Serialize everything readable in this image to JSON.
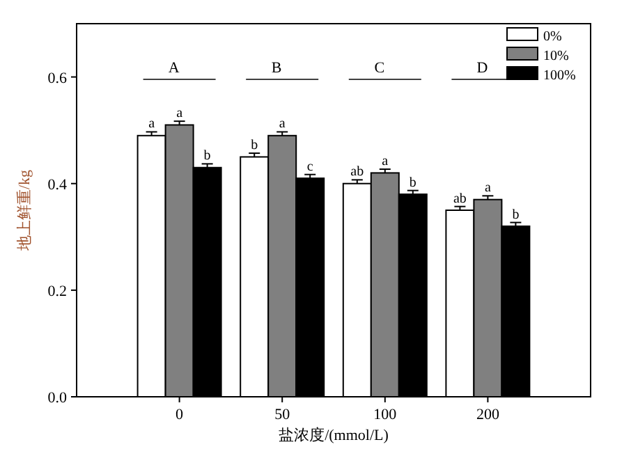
{
  "chart_data": {
    "type": "bar",
    "xlabel": "盐浓度/(mmol/L)",
    "ylabel": "地上鲜重/kg",
    "categories": [
      "0",
      "50",
      "100",
      "200"
    ],
    "series": [
      {
        "name": "0%",
        "color": "#ffffff",
        "values": [
          0.49,
          0.45,
          0.4,
          0.35
        ],
        "errors": [
          0.007,
          0.007,
          0.007,
          0.007
        ],
        "value_labels": [
          "a",
          "b",
          "ab",
          "ab"
        ]
      },
      {
        "name": "10%",
        "color": "#808080",
        "values": [
          0.51,
          0.49,
          0.42,
          0.37
        ],
        "errors": [
          0.007,
          0.007,
          0.007,
          0.007
        ],
        "value_labels": [
          "a",
          "a",
          "a",
          "a"
        ]
      },
      {
        "name": "100%",
        "color": "#000000",
        "values": [
          0.43,
          0.41,
          0.38,
          0.32
        ],
        "errors": [
          0.007,
          0.007,
          0.007,
          0.007
        ],
        "value_labels": [
          "b",
          "c",
          "b",
          "b"
        ]
      }
    ],
    "ylim": [
      0,
      0.7
    ],
    "yticks": [
      {
        "value": 0,
        "label": "0.0"
      },
      0.2,
      0.4,
      0.6
    ],
    "legend": "top right",
    "annotations": [
      "A",
      "B",
      "C",
      "D"
    ]
  }
}
